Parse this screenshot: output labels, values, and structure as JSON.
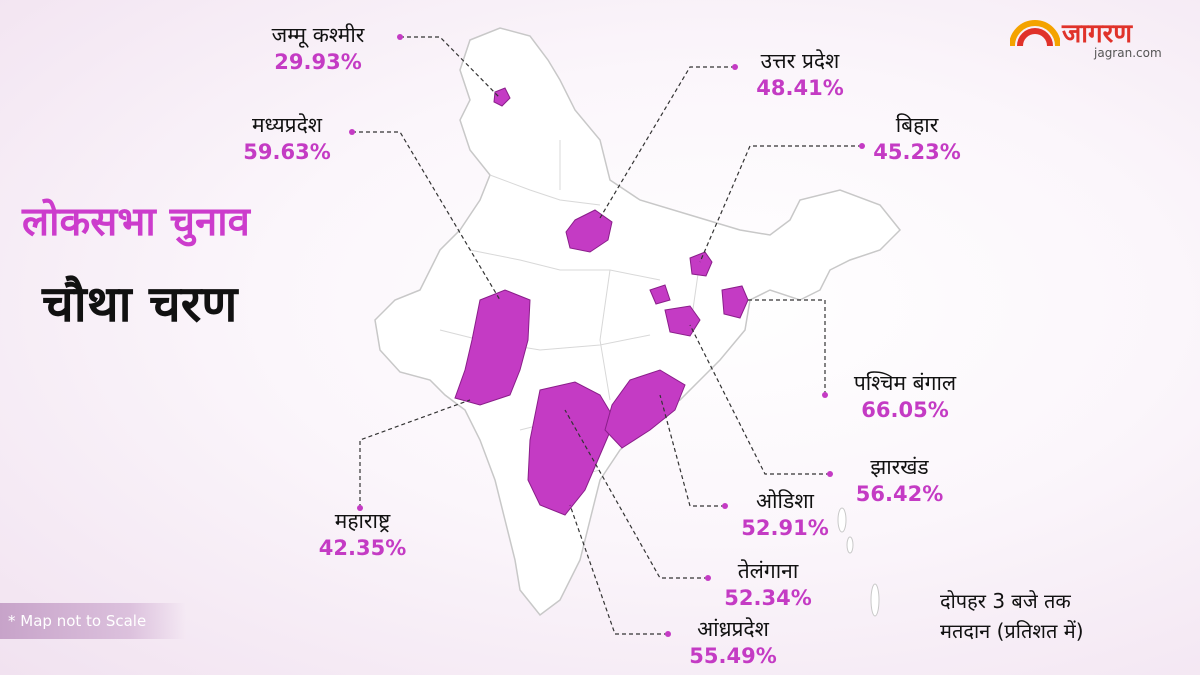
{
  "header": {
    "title_line1": "लोकसभा चुनाव",
    "title_line2": "चौथा चरण"
  },
  "logo": {
    "name": "जागरण",
    "url": "jagran.com"
  },
  "states": [
    {
      "name": "जम्मू कश्मीर",
      "turnout": "29.93%"
    },
    {
      "name": "मध्यप्रदेश",
      "turnout": "59.63%"
    },
    {
      "name": "उत्तर प्रदेश",
      "turnout": "48.41%"
    },
    {
      "name": "बिहार",
      "turnout": "45.23%"
    },
    {
      "name": "पश्चिम बंगाल",
      "turnout": "66.05%"
    },
    {
      "name": "झारखंड",
      "turnout": "56.42%"
    },
    {
      "name": "ओडिशा",
      "turnout": "52.91%"
    },
    {
      "name": "तेलंगाना",
      "turnout": "52.34%"
    },
    {
      "name": "आंध्रप्रदेश",
      "turnout": "55.49%"
    },
    {
      "name": "महाराष्ट्र",
      "turnout": "42.35%"
    }
  ],
  "footer": {
    "note": "* Map not to Scale",
    "time_line1": "दोपहर 3 बजे तक",
    "time_line2": "मतदान (प्रतिशत में)"
  },
  "colors": {
    "highlight": "#c43bc4",
    "title": "#cc3ccc",
    "map_fill": "#ffffff",
    "map_stroke": "#c8c8c8",
    "logo_red": "#e0322a"
  }
}
